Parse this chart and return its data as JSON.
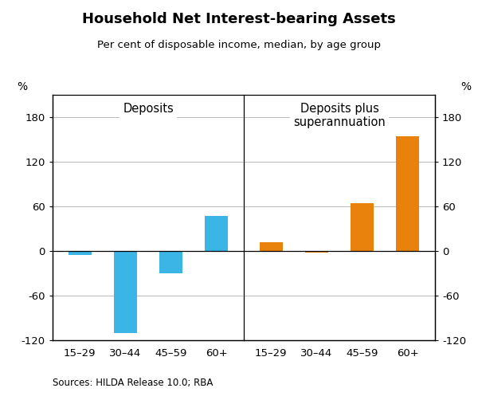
{
  "title": "Household Net Interest-bearing Assets",
  "subtitle": "Per cent of disposable income, median, by age group",
  "categories": [
    "15–29",
    "30–44",
    "45–59",
    "60+"
  ],
  "deposits_values": [
    -5,
    -110,
    -30,
    48
  ],
  "deposits_plus_values": [
    12,
    -2,
    65,
    155
  ],
  "deposits_color": "#3ab5e5",
  "deposits_plus_color": "#e8820c",
  "ylim": [
    -120,
    210
  ],
  "yticks": [
    -120,
    -60,
    0,
    60,
    120,
    180
  ],
  "ylabel_left": "%",
  "ylabel_right": "%",
  "panel_left_label": "Deposits",
  "panel_right_label": "Deposits plus\nsuperannuation",
  "source_text": "Sources: HILDA Release 10.0; RBA",
  "background_color": "#ffffff",
  "grid_color": "#b0b0b0",
  "bar_width": 0.5
}
